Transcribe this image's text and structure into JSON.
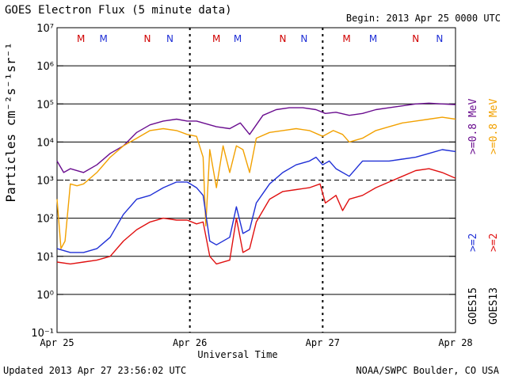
{
  "title": "GOES Electron Flux (5 minute data)",
  "begin_label": "Begin: 2013 Apr 25 0000 UTC",
  "updated_label": "Updated 2013 Apr 27 23:56:02 UTC",
  "credit": "NOAA/SWPC Boulder, CO USA",
  "colors": {
    "goes15_08": "#6a0d8f",
    "goes15_2": "#1f2fd6",
    "goes13_08": "#f2a100",
    "goes13_2": "#e01010"
  },
  "chart_data": {
    "type": "line",
    "title": "GOES Electron Flux (5 minute data)",
    "xlabel": "Universal Time",
    "ylabel": "Particles cm⁻²s⁻¹sr⁻¹",
    "x_range_days": [
      0,
      3
    ],
    "x_ticks": [
      {
        "day": 0,
        "label": "Apr 25"
      },
      {
        "day": 1,
        "label": "Apr 26"
      },
      {
        "day": 2,
        "label": "Apr 27"
      },
      {
        "day": 3,
        "label": "Apr 28"
      }
    ],
    "y_scale": "log",
    "y_range_exp": [
      -1,
      7
    ],
    "y_tick_labels": [
      "10⁻¹",
      "10⁰",
      "10¹",
      "10²",
      "10³",
      "10⁴",
      "10⁵",
      "10⁶",
      "10⁷"
    ],
    "threshold_exp": 3,
    "noon_midnight_markers": [
      {
        "label": "M",
        "day": 0.18,
        "color": "#d00000"
      },
      {
        "label": "M",
        "day": 0.35,
        "color": "#1f2fd6"
      },
      {
        "label": "N",
        "day": 0.68,
        "color": "#d00000"
      },
      {
        "label": "N",
        "day": 0.85,
        "color": "#1f2fd6"
      },
      {
        "label": "M",
        "day": 1.2,
        "color": "#d00000"
      },
      {
        "label": "M",
        "day": 1.36,
        "color": "#1f2fd6"
      },
      {
        "label": "N",
        "day": 1.7,
        "color": "#d00000"
      },
      {
        "label": "N",
        "day": 1.86,
        "color": "#1f2fd6"
      },
      {
        "label": "M",
        "day": 2.18,
        "color": "#d00000"
      },
      {
        "label": "M",
        "day": 2.38,
        "color": "#1f2fd6"
      },
      {
        "label": "N",
        "day": 2.7,
        "color": "#d00000"
      },
      {
        "label": "N",
        "day": 2.88,
        "color": "#1f2fd6"
      }
    ],
    "right_labels": {
      "goes15_08": ">=0.8 MeV",
      "goes13_08": ">=0.8 MeV",
      "goes15_2": ">=2",
      "goes13_2": ">=2",
      "goes15": "GOES15",
      "goes13": "GOES13"
    },
    "series": [
      {
        "key": "goes15_08",
        "color": "#6a0d8f",
        "points": [
          [
            0,
            3.5
          ],
          [
            0.05,
            3.2
          ],
          [
            0.1,
            3.3
          ],
          [
            0.2,
            3.2
          ],
          [
            0.3,
            3.4
          ],
          [
            0.4,
            3.7
          ],
          [
            0.5,
            3.9
          ],
          [
            0.6,
            4.25
          ],
          [
            0.7,
            4.45
          ],
          [
            0.8,
            4.55
          ],
          [
            0.9,
            4.6
          ],
          [
            0.98,
            4.55
          ],
          [
            1.05,
            4.55
          ],
          [
            1.1,
            4.5
          ],
          [
            1.2,
            4.4
          ],
          [
            1.3,
            4.35
          ],
          [
            1.38,
            4.5
          ],
          [
            1.45,
            4.2
          ],
          [
            1.55,
            4.7
          ],
          [
            1.65,
            4.85
          ],
          [
            1.75,
            4.9
          ],
          [
            1.85,
            4.9
          ],
          [
            1.95,
            4.85
          ],
          [
            2.02,
            4.75
          ],
          [
            2.1,
            4.78
          ],
          [
            2.2,
            4.7
          ],
          [
            2.3,
            4.75
          ],
          [
            2.4,
            4.85
          ],
          [
            2.5,
            4.9
          ],
          [
            2.6,
            4.95
          ],
          [
            2.7,
            5.0
          ],
          [
            2.8,
            5.02
          ],
          [
            2.9,
            5.0
          ],
          [
            3.0,
            4.98
          ]
        ]
      },
      {
        "key": "goes13_08",
        "color": "#f2a100",
        "points": [
          [
            0,
            2.5
          ],
          [
            0.03,
            1.2
          ],
          [
            0.06,
            1.4
          ],
          [
            0.1,
            2.9
          ],
          [
            0.15,
            2.85
          ],
          [
            0.2,
            2.9
          ],
          [
            0.3,
            3.2
          ],
          [
            0.4,
            3.6
          ],
          [
            0.5,
            3.9
          ],
          [
            0.6,
            4.1
          ],
          [
            0.7,
            4.3
          ],
          [
            0.8,
            4.35
          ],
          [
            0.9,
            4.3
          ],
          [
            0.98,
            4.2
          ],
          [
            1.05,
            4.15
          ],
          [
            1.1,
            3.6
          ],
          [
            1.12,
            1.8
          ],
          [
            1.15,
            3.8
          ],
          [
            1.2,
            2.8
          ],
          [
            1.25,
            3.9
          ],
          [
            1.3,
            3.2
          ],
          [
            1.35,
            3.9
          ],
          [
            1.4,
            3.8
          ],
          [
            1.45,
            3.2
          ],
          [
            1.5,
            4.1
          ],
          [
            1.6,
            4.25
          ],
          [
            1.7,
            4.3
          ],
          [
            1.8,
            4.35
          ],
          [
            1.9,
            4.3
          ],
          [
            2.0,
            4.15
          ],
          [
            2.08,
            4.3
          ],
          [
            2.15,
            4.2
          ],
          [
            2.2,
            4.0
          ],
          [
            2.3,
            4.1
          ],
          [
            2.4,
            4.3
          ],
          [
            2.5,
            4.4
          ],
          [
            2.6,
            4.5
          ],
          [
            2.7,
            4.55
          ],
          [
            2.8,
            4.6
          ],
          [
            2.9,
            4.65
          ],
          [
            3.0,
            4.6
          ]
        ]
      },
      {
        "key": "goes15_2",
        "color": "#1f2fd6",
        "points": [
          [
            0,
            1.2
          ],
          [
            0.1,
            1.1
          ],
          [
            0.2,
            1.1
          ],
          [
            0.3,
            1.2
          ],
          [
            0.4,
            1.5
          ],
          [
            0.5,
            2.1
          ],
          [
            0.6,
            2.5
          ],
          [
            0.7,
            2.6
          ],
          [
            0.8,
            2.8
          ],
          [
            0.9,
            2.95
          ],
          [
            0.98,
            2.95
          ],
          [
            1.05,
            2.8
          ],
          [
            1.1,
            2.6
          ],
          [
            1.15,
            1.4
          ],
          [
            1.2,
            1.3
          ],
          [
            1.3,
            1.5
          ],
          [
            1.35,
            2.3
          ],
          [
            1.4,
            1.6
          ],
          [
            1.45,
            1.7
          ],
          [
            1.5,
            2.4
          ],
          [
            1.6,
            2.9
          ],
          [
            1.7,
            3.2
          ],
          [
            1.8,
            3.4
          ],
          [
            1.9,
            3.5
          ],
          [
            1.95,
            3.6
          ],
          [
            2.0,
            3.4
          ],
          [
            2.05,
            3.5
          ],
          [
            2.1,
            3.3
          ],
          [
            2.2,
            3.1
          ],
          [
            2.3,
            3.5
          ],
          [
            2.4,
            3.5
          ],
          [
            2.5,
            3.5
          ],
          [
            2.6,
            3.55
          ],
          [
            2.7,
            3.6
          ],
          [
            2.8,
            3.7
          ],
          [
            2.9,
            3.8
          ],
          [
            3.0,
            3.75
          ]
        ]
      },
      {
        "key": "goes13_2",
        "color": "#e01010",
        "points": [
          [
            0,
            0.85
          ],
          [
            0.1,
            0.8
          ],
          [
            0.2,
            0.85
          ],
          [
            0.3,
            0.9
          ],
          [
            0.4,
            1.0
          ],
          [
            0.5,
            1.4
          ],
          [
            0.6,
            1.7
          ],
          [
            0.7,
            1.9
          ],
          [
            0.8,
            2.0
          ],
          [
            0.9,
            1.95
          ],
          [
            0.98,
            1.95
          ],
          [
            1.05,
            1.85
          ],
          [
            1.1,
            1.9
          ],
          [
            1.15,
            1.0
          ],
          [
            1.2,
            0.8
          ],
          [
            1.3,
            0.9
          ],
          [
            1.35,
            2.0
          ],
          [
            1.4,
            1.1
          ],
          [
            1.45,
            1.2
          ],
          [
            1.5,
            1.9
          ],
          [
            1.6,
            2.5
          ],
          [
            1.7,
            2.7
          ],
          [
            1.8,
            2.75
          ],
          [
            1.9,
            2.8
          ],
          [
            1.98,
            2.9
          ],
          [
            2.02,
            2.4
          ],
          [
            2.1,
            2.6
          ],
          [
            2.15,
            2.2
          ],
          [
            2.2,
            2.5
          ],
          [
            2.3,
            2.6
          ],
          [
            2.4,
            2.8
          ],
          [
            2.5,
            2.95
          ],
          [
            2.6,
            3.1
          ],
          [
            2.7,
            3.25
          ],
          [
            2.8,
            3.3
          ],
          [
            2.9,
            3.2
          ],
          [
            3.0,
            3.05
          ]
        ]
      }
    ]
  }
}
